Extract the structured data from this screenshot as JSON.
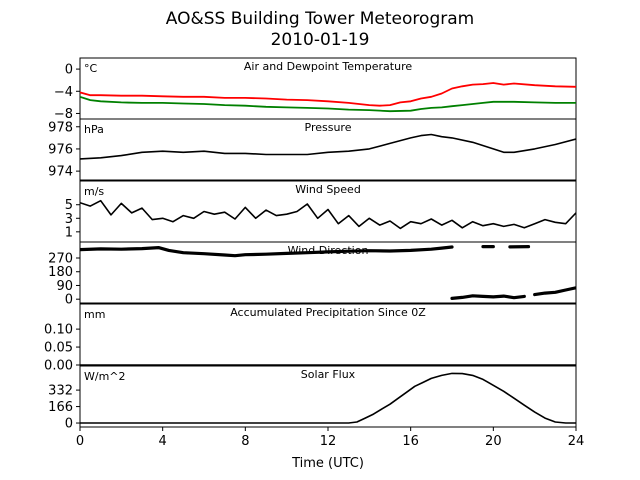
{
  "figure": {
    "title_line1": "AO&SS Building Tower Meteorogram",
    "title_line2": "2010-01-19",
    "xlabel": "Time (UTC)"
  },
  "chart_data": [
    {
      "type": "line",
      "title": "Air and Dewpoint Temperature",
      "unit": "°C",
      "ylim": [
        -9,
        2
      ],
      "yticks": [
        0,
        -4,
        -8
      ],
      "series": [
        {
          "color": "#ff0000",
          "points": [
            [
              0,
              -4.2
            ],
            [
              0.5,
              -4.7
            ],
            [
              1,
              -4.7
            ],
            [
              2,
              -4.8
            ],
            [
              3,
              -4.8
            ],
            [
              4,
              -4.9
            ],
            [
              5,
              -5.0
            ],
            [
              6,
              -5.0
            ],
            [
              7,
              -5.2
            ],
            [
              8,
              -5.2
            ],
            [
              9,
              -5.3
            ],
            [
              10,
              -5.5
            ],
            [
              11,
              -5.6
            ],
            [
              12,
              -5.8
            ],
            [
              13,
              -6.1
            ],
            [
              14,
              -6.5
            ],
            [
              14.5,
              -6.6
            ],
            [
              15,
              -6.5
            ],
            [
              15.5,
              -6.0
            ],
            [
              16,
              -5.8
            ],
            [
              16.5,
              -5.3
            ],
            [
              17,
              -5.0
            ],
            [
              17.5,
              -4.4
            ],
            [
              18,
              -3.5
            ],
            [
              18.5,
              -3.1
            ],
            [
              19,
              -2.8
            ],
            [
              19.5,
              -2.7
            ],
            [
              20,
              -2.5
            ],
            [
              20.5,
              -2.8
            ],
            [
              21,
              -2.6
            ],
            [
              22,
              -2.9
            ],
            [
              23,
              -3.1
            ],
            [
              24,
              -3.2
            ]
          ]
        },
        {
          "color": "#008000",
          "points": [
            [
              0,
              -5.0
            ],
            [
              0.5,
              -5.6
            ],
            [
              1,
              -5.8
            ],
            [
              2,
              -6.0
            ],
            [
              3,
              -6.1
            ],
            [
              4,
              -6.1
            ],
            [
              5,
              -6.2
            ],
            [
              6,
              -6.3
            ],
            [
              7,
              -6.5
            ],
            [
              8,
              -6.6
            ],
            [
              9,
              -6.8
            ],
            [
              10,
              -6.9
            ],
            [
              11,
              -7.0
            ],
            [
              12,
              -7.1
            ],
            [
              13,
              -7.3
            ],
            [
              14,
              -7.4
            ],
            [
              15,
              -7.6
            ],
            [
              16,
              -7.5
            ],
            [
              16.5,
              -7.2
            ],
            [
              17,
              -7.0
            ],
            [
              17.5,
              -6.9
            ],
            [
              18,
              -6.7
            ],
            [
              18.5,
              -6.5
            ],
            [
              19,
              -6.3
            ],
            [
              19.5,
              -6.1
            ],
            [
              20,
              -5.9
            ],
            [
              21,
              -5.9
            ],
            [
              22,
              -6.0
            ],
            [
              23,
              -6.1
            ],
            [
              24,
              -6.1
            ]
          ]
        }
      ]
    },
    {
      "type": "line",
      "title": "Pressure",
      "unit": "hPa",
      "ylim": [
        973.2,
        978.7
      ],
      "yticks": [
        978,
        976,
        974
      ],
      "series": [
        {
          "color": "#000000",
          "points": [
            [
              0,
              975.1
            ],
            [
              1,
              975.2
            ],
            [
              2,
              975.4
            ],
            [
              3,
              975.7
            ],
            [
              4,
              975.8
            ],
            [
              5,
              975.7
            ],
            [
              6,
              975.8
            ],
            [
              7,
              975.6
            ],
            [
              8,
              975.6
            ],
            [
              9,
              975.5
            ],
            [
              10,
              975.5
            ],
            [
              11,
              975.5
            ],
            [
              12,
              975.7
            ],
            [
              13,
              975.8
            ],
            [
              14,
              976.0
            ],
            [
              15,
              976.5
            ],
            [
              16,
              977.0
            ],
            [
              16.5,
              977.2
            ],
            [
              17,
              977.3
            ],
            [
              17.5,
              977.1
            ],
            [
              18,
              977.0
            ],
            [
              19,
              976.6
            ],
            [
              20,
              976.0
            ],
            [
              20.5,
              975.7
            ],
            [
              21,
              975.7
            ],
            [
              22,
              976.0
            ],
            [
              23,
              976.4
            ],
            [
              24,
              976.9
            ]
          ]
        }
      ]
    },
    {
      "type": "line",
      "title": "Wind Speed",
      "unit": "m/s",
      "ylim": [
        -0.5,
        8.5
      ],
      "yticks": [
        5,
        3,
        1
      ],
      "series": [
        {
          "color": "#000000",
          "points": [
            [
              0,
              5.3
            ],
            [
              0.5,
              4.8
            ],
            [
              1,
              5.6
            ],
            [
              1.5,
              3.5
            ],
            [
              2,
              5.2
            ],
            [
              2.5,
              3.8
            ],
            [
              3,
              4.5
            ],
            [
              3.5,
              2.8
            ],
            [
              4,
              3.0
            ],
            [
              4.5,
              2.5
            ],
            [
              5,
              3.4
            ],
            [
              5.5,
              3.0
            ],
            [
              6,
              4.0
            ],
            [
              6.5,
              3.6
            ],
            [
              7,
              3.9
            ],
            [
              7.5,
              2.9
            ],
            [
              8,
              4.6
            ],
            [
              8.5,
              3.0
            ],
            [
              9,
              4.2
            ],
            [
              9.5,
              3.4
            ],
            [
              10,
              3.6
            ],
            [
              10.5,
              4.0
            ],
            [
              11,
              5.1
            ],
            [
              11.5,
              3.0
            ],
            [
              12,
              4.3
            ],
            [
              12.5,
              2.2
            ],
            [
              13,
              3.4
            ],
            [
              13.5,
              1.8
            ],
            [
              14,
              3.0
            ],
            [
              14.5,
              2.0
            ],
            [
              15,
              2.6
            ],
            [
              15.5,
              1.5
            ],
            [
              16,
              2.5
            ],
            [
              16.5,
              2.2
            ],
            [
              17,
              2.9
            ],
            [
              17.5,
              2.0
            ],
            [
              18,
              2.7
            ],
            [
              18.5,
              1.6
            ],
            [
              19,
              2.5
            ],
            [
              19.5,
              1.9
            ],
            [
              20,
              2.2
            ],
            [
              20.5,
              1.8
            ],
            [
              21,
              2.1
            ],
            [
              21.5,
              1.6
            ],
            [
              22,
              2.2
            ],
            [
              22.5,
              2.8
            ],
            [
              23,
              2.4
            ],
            [
              23.5,
              2.2
            ],
            [
              24,
              3.8
            ]
          ]
        }
      ]
    },
    {
      "type": "scatter",
      "title": "Wind Direction",
      "unit": "",
      "ylim": [
        -25,
        375
      ],
      "yticks": [
        270,
        180,
        90,
        0
      ],
      "series": [
        {
          "color": "#000000",
          "segments": [
            [
              [
                0,
                325
              ],
              [
                1,
                330
              ],
              [
                2,
                328
              ],
              [
                3,
                332
              ],
              [
                3.8,
                338
              ],
              [
                4.3,
                320
              ],
              [
                5,
                305
              ],
              [
                6,
                298
              ],
              [
                7,
                290
              ],
              [
                7.5,
                285
              ],
              [
                8,
                292
              ],
              [
                9,
                295
              ],
              [
                10,
                300
              ],
              [
                11,
                305
              ],
              [
                12,
                310
              ],
              [
                13,
                315
              ],
              [
                14,
                318
              ],
              [
                15,
                316
              ],
              [
                16,
                320
              ],
              [
                17,
                328
              ],
              [
                17.5,
                335
              ],
              [
                18,
                342
              ]
            ],
            [
              [
                19.5,
                345
              ],
              [
                20,
                345
              ]
            ],
            [
              [
                20.8,
                343
              ],
              [
                21.7,
                345
              ]
            ],
            [
              [
                18,
                5
              ],
              [
                18.5,
                12
              ],
              [
                19,
                22
              ],
              [
                19.5,
                18
              ],
              [
                20,
                15
              ],
              [
                20.5,
                20
              ],
              [
                21,
                10
              ],
              [
                21.5,
                18
              ]
            ],
            [
              [
                22,
                30
              ],
              [
                22.5,
                40
              ],
              [
                23,
                45
              ],
              [
                23.5,
                60
              ],
              [
                24,
                75
              ]
            ]
          ]
        }
      ]
    },
    {
      "type": "line",
      "title": "Accumulated Precipitation Since 0Z",
      "unit": "mm",
      "ylim": [
        0,
        0.17
      ],
      "yticks": [
        0.1,
        0.05,
        0.0
      ],
      "series": [
        {
          "color": "#000000",
          "points": [
            [
              0,
              0
            ],
            [
              24,
              0
            ]
          ]
        }
      ]
    },
    {
      "type": "line",
      "title": "Solar Flux",
      "unit": "W/m^2",
      "ylim": [
        -40,
        575
      ],
      "yticks": [
        332,
        166,
        0
      ],
      "series": [
        {
          "color": "#000000",
          "points": [
            [
              0,
              0
            ],
            [
              13,
              0
            ],
            [
              13.4,
              10
            ],
            [
              13.8,
              50
            ],
            [
              14.2,
              90
            ],
            [
              14.6,
              140
            ],
            [
              15,
              190
            ],
            [
              15.4,
              250
            ],
            [
              15.8,
              310
            ],
            [
              16.2,
              370
            ],
            [
              16.6,
              410
            ],
            [
              17,
              450
            ],
            [
              17.5,
              480
            ],
            [
              18,
              500
            ],
            [
              18.5,
              498
            ],
            [
              19,
              480
            ],
            [
              19.5,
              440
            ],
            [
              20,
              380
            ],
            [
              20.5,
              320
            ],
            [
              21,
              250
            ],
            [
              21.5,
              180
            ],
            [
              22,
              110
            ],
            [
              22.5,
              50
            ],
            [
              23,
              10
            ],
            [
              23.5,
              0
            ],
            [
              24,
              0
            ]
          ]
        }
      ]
    }
  ],
  "xaxis": {
    "xlim": [
      0,
      24
    ],
    "ticks": [
      0,
      4,
      8,
      12,
      16,
      20,
      24
    ]
  }
}
